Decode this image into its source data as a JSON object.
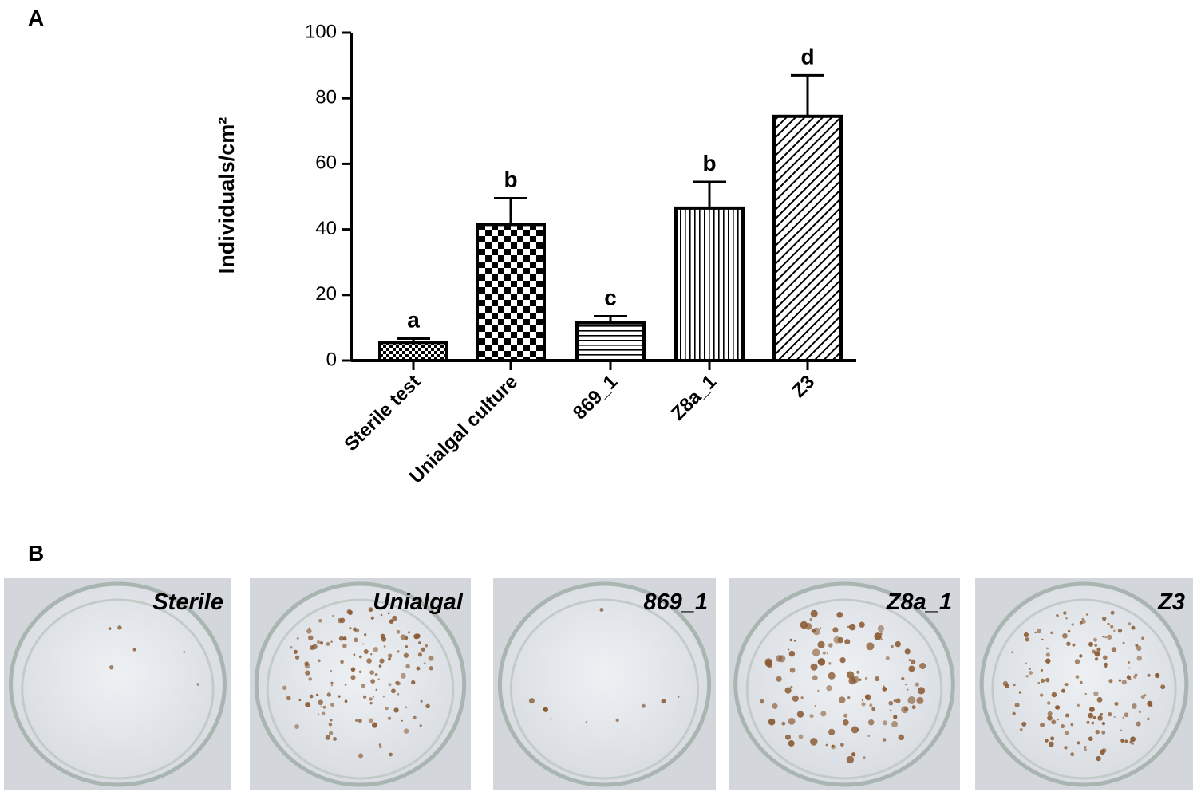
{
  "chart_data": {
    "type": "bar",
    "panel_label": "A",
    "ylabel": "Individuals/cm²",
    "categories": [
      "Sterile test",
      "Unialgal culture",
      "869_1",
      "Z8a_1",
      "Z3"
    ],
    "values": [
      5.5,
      41.5,
      11.5,
      46.5,
      74.5
    ],
    "errors": [
      1.2,
      8,
      2,
      8,
      12.5
    ],
    "significance": [
      "a",
      "b",
      "c",
      "b",
      "d"
    ],
    "color": "#000000",
    "ylim": [
      0,
      100
    ],
    "yticks": [
      0,
      20,
      40,
      60,
      80,
      100
    ],
    "grid": false
  },
  "photos": {
    "panel_label": "B",
    "items": [
      {
        "label": "Sterile"
      },
      {
        "label": "Unialgal"
      },
      {
        "label": "869_1"
      },
      {
        "label": "Z8a_1"
      },
      {
        "label": "Z3"
      }
    ]
  }
}
